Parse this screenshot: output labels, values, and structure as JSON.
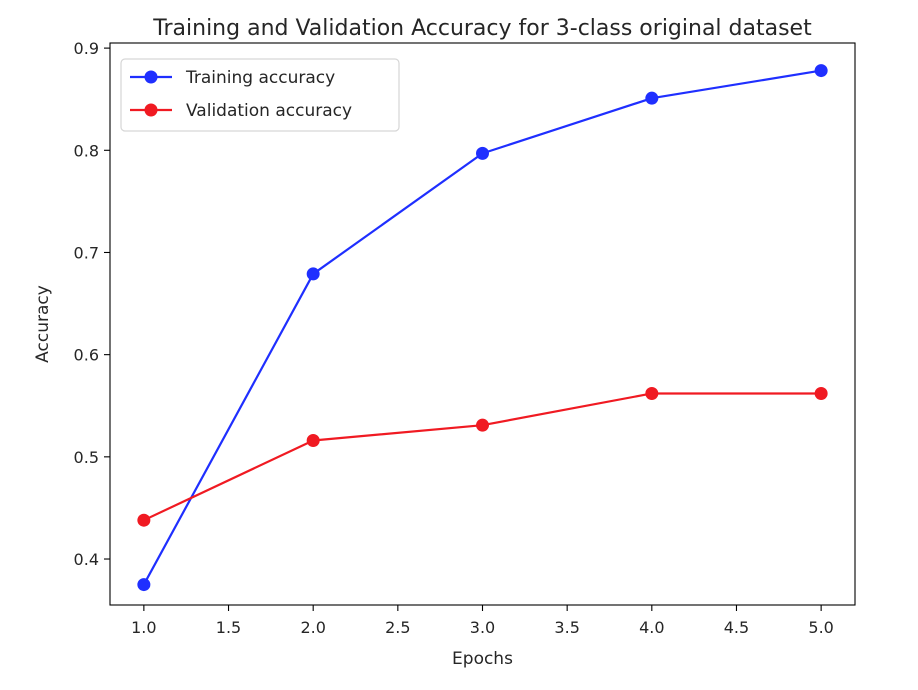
{
  "chart_data": {
    "type": "line",
    "title": "Training and Validation Accuracy for 3-class original dataset",
    "xlabel": "Epochs",
    "ylabel": "Accuracy",
    "x": [
      1.0,
      2.0,
      3.0,
      4.0,
      5.0
    ],
    "xlim": [
      0.8,
      5.2
    ],
    "ylim": [
      0.355,
      0.905
    ],
    "xticks": [
      1.0,
      1.5,
      2.0,
      2.5,
      3.0,
      3.5,
      4.0,
      4.5,
      5.0
    ],
    "xtick_labels": [
      "1.0",
      "1.5",
      "2.0",
      "2.5",
      "3.0",
      "3.5",
      "4.0",
      "4.5",
      "5.0"
    ],
    "yticks": [
      0.4,
      0.5,
      0.6,
      0.7,
      0.8,
      0.9
    ],
    "ytick_labels": [
      "0.4",
      "0.5",
      "0.6",
      "0.7",
      "0.8",
      "0.9"
    ],
    "grid": false,
    "legend_position": "upper-left",
    "series": [
      {
        "name": "Training accuracy",
        "color": "#1f2fff",
        "marker": "circle",
        "values": [
          0.375,
          0.679,
          0.797,
          0.851,
          0.878
        ]
      },
      {
        "name": "Validation accuracy",
        "color": "#f01a22",
        "marker": "circle",
        "values": [
          0.438,
          0.516,
          0.531,
          0.562,
          0.562
        ]
      }
    ]
  }
}
